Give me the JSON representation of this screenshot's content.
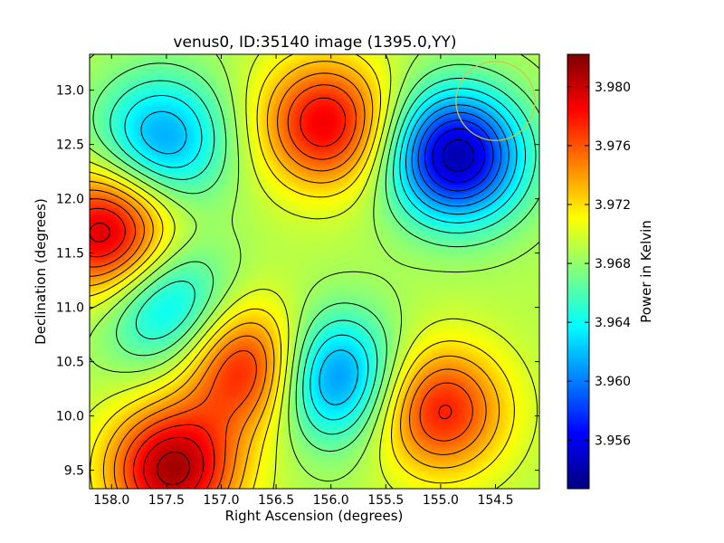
{
  "chart_data": {
    "type": "heatmap",
    "title": "venus0, ID:35140 image (1395.0,YY)",
    "xlabel": "Right Ascension (degrees)",
    "ylabel": "Declination (degrees)",
    "xlim": [
      158.2,
      154.1
    ],
    "ylim": [
      9.33,
      13.33
    ],
    "x_ticks": [
      158.0,
      157.5,
      157.0,
      156.5,
      156.0,
      155.5,
      155.0,
      154.5
    ],
    "x_tick_labels": [
      "158.0",
      "157.5",
      "157.0",
      "156.5",
      "156.0",
      "155.5",
      "155.0",
      "154.5"
    ],
    "y_ticks": [
      9.5,
      10.0,
      10.5,
      11.0,
      11.5,
      12.0,
      12.5,
      13.0
    ],
    "y_tick_labels": [
      "9.5",
      "10.0",
      "10.5",
      "11.0",
      "11.5",
      "12.0",
      "12.5",
      "13.0"
    ],
    "colorbar": {
      "label": "Power in Kelvin",
      "range": [
        3.9527,
        3.9822
      ],
      "ticks": [
        3.956,
        3.96,
        3.964,
        3.968,
        3.972,
        3.976,
        3.98
      ],
      "tick_labels": [
        "3.956",
        "3.960",
        "3.964",
        "3.968",
        "3.972",
        "3.976",
        "3.980"
      ],
      "colormap": "jet"
    },
    "field_background": 3.969,
    "features": [
      {
        "ra": 156.05,
        "dec": 12.7,
        "value": 3.979
      },
      {
        "ra": 154.85,
        "dec": 12.4,
        "value": 3.954
      },
      {
        "ra": 157.55,
        "dec": 12.55,
        "value": 3.961
      },
      {
        "ra": 158.05,
        "dec": 11.68,
        "value": 3.9805
      },
      {
        "ra": 157.5,
        "dec": 11.02,
        "value": 3.962
      },
      {
        "ra": 156.75,
        "dec": 10.45,
        "value": 3.979
      },
      {
        "ra": 156.0,
        "dec": 10.35,
        "value": 3.959
      },
      {
        "ra": 155.0,
        "dec": 10.05,
        "value": 3.978
      },
      {
        "ra": 157.45,
        "dec": 9.5,
        "value": 3.981
      }
    ],
    "overlay_circle": {
      "ra": 154.5,
      "dec": 12.9,
      "radius_deg": 0.36,
      "color": "#c8c84a"
    },
    "contours": "black"
  }
}
